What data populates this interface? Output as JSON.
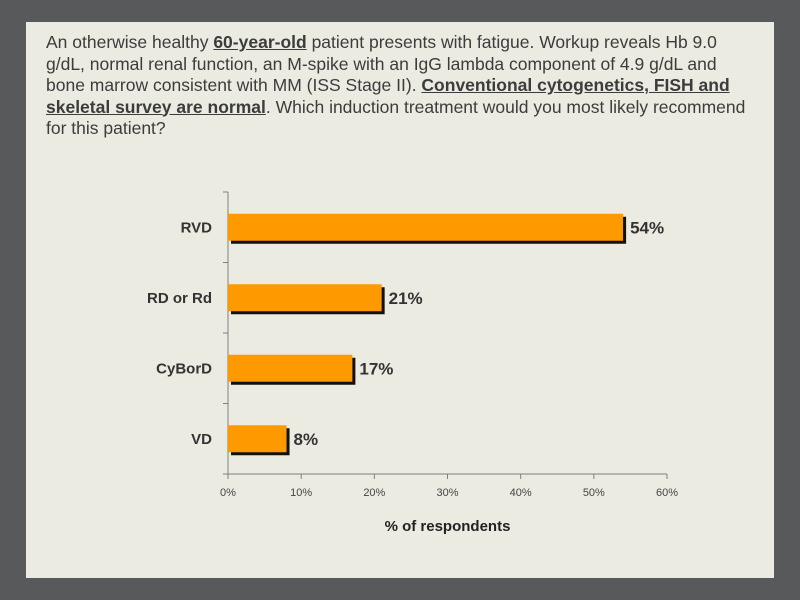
{
  "question": {
    "parts": [
      {
        "text": "An otherwise healthy ",
        "emphasis": false
      },
      {
        "text": "60-year-old",
        "emphasis": true
      },
      {
        "text": " patient presents with fatigue. Workup reveals Hb 9.0 g/dL, normal renal function, an M-spike with an IgG lambda component of 4.9 g/dL and bone marrow consistent with MM (ISS Stage II). ",
        "emphasis": false
      },
      {
        "text": "Conventional cytogenetics, FISH and skeletal survey are normal",
        "emphasis": true
      },
      {
        "text": ". Which induction treatment would you most likely recommend for this patient?",
        "emphasis": false
      }
    ]
  },
  "chart_data": {
    "type": "bar",
    "orientation": "horizontal",
    "categories": [
      "RVD",
      "RD or Rd",
      "CyBorD",
      "VD"
    ],
    "values": [
      54,
      21,
      17,
      8
    ],
    "value_labels": [
      "54%",
      "21%",
      "17%",
      "8%"
    ],
    "xlim": [
      0,
      60
    ],
    "xticks": [
      0,
      10,
      20,
      30,
      40,
      50,
      60
    ],
    "xtick_labels": [
      "0%",
      "10%",
      "20%",
      "30%",
      "40%",
      "50%",
      "60%"
    ],
    "xlabel": "% of respondents",
    "ylabel": "",
    "title": "",
    "grid": false,
    "bar_color": "#ff9900",
    "shadow_color": "#111111"
  }
}
